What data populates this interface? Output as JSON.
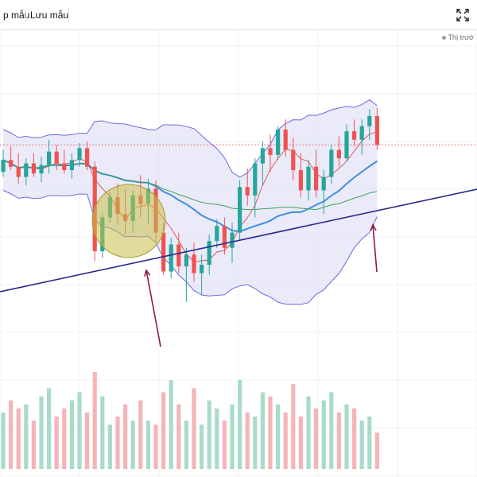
{
  "toolbar": {
    "left_label": "p mẫu",
    "save_label": "Lưu mẫu",
    "fullscreen_icon": "fullscreen-icon"
  },
  "legend": {
    "market_label": "Thị trườ"
  },
  "colors": {
    "up": "#26a69a",
    "down": "#ef5350",
    "band_fill": "#dcdcf5",
    "band_line": "#6a6ae0",
    "ma_fast": "#e05a5a",
    "ma_mid": "#3f8fe0",
    "ma_slow": "#3aa35a",
    "trendline": "#2a2a8c",
    "arrow": "#8b1a4a",
    "circle": "#c8c04a",
    "price_line": "#ef5350"
  },
  "chart_data": {
    "type": "candlestick",
    "candles": [
      [
        0,
        225,
        238,
        222,
        232
      ],
      [
        1,
        232,
        240,
        226,
        228
      ],
      [
        2,
        228,
        236,
        218,
        222
      ],
      [
        3,
        222,
        233,
        217,
        230
      ],
      [
        4,
        230,
        236,
        222,
        224
      ],
      [
        5,
        224,
        234,
        219,
        229
      ],
      [
        6,
        229,
        244,
        224,
        237
      ],
      [
        7,
        237,
        241,
        226,
        230
      ],
      [
        8,
        230,
        238,
        224,
        226
      ],
      [
        9,
        226,
        236,
        221,
        232
      ],
      [
        10,
        232,
        242,
        228,
        239
      ],
      [
        11,
        239,
        243,
        226,
        228
      ],
      [
        12,
        228,
        231,
        172,
        178
      ],
      [
        13,
        178,
        201,
        174,
        198
      ],
      [
        14,
        198,
        213,
        195,
        210
      ],
      [
        15,
        210,
        218,
        194,
        200
      ],
      [
        16,
        200,
        215,
        188,
        196
      ],
      [
        17,
        196,
        214,
        189,
        211
      ],
      [
        18,
        211,
        223,
        198,
        206
      ],
      [
        19,
        206,
        221,
        194,
        215
      ],
      [
        20,
        215,
        220,
        184,
        189
      ],
      [
        21,
        189,
        195,
        164,
        166
      ],
      [
        22,
        166,
        186,
        162,
        182
      ],
      [
        23,
        182,
        189,
        165,
        169
      ],
      [
        24,
        169,
        180,
        148,
        176
      ],
      [
        25,
        176,
        183,
        160,
        165
      ],
      [
        26,
        165,
        176,
        152,
        170
      ],
      [
        27,
        170,
        188,
        164,
        184
      ],
      [
        28,
        184,
        197,
        180,
        193
      ],
      [
        29,
        193,
        198,
        176,
        180
      ],
      [
        30,
        180,
        195,
        171,
        189
      ],
      [
        31,
        189,
        220,
        184,
        216
      ],
      [
        32,
        216,
        227,
        205,
        211
      ],
      [
        33,
        211,
        233,
        198,
        230
      ],
      [
        34,
        230,
        243,
        217,
        239
      ],
      [
        35,
        239,
        247,
        225,
        235
      ],
      [
        36,
        235,
        252,
        232,
        250
      ],
      [
        37,
        250,
        256,
        234,
        238
      ],
      [
        38,
        238,
        245,
        220,
        226
      ],
      [
        39,
        226,
        236,
        210,
        214
      ],
      [
        40,
        214,
        232,
        208,
        228
      ],
      [
        41,
        228,
        238,
        210,
        214
      ],
      [
        42,
        214,
        226,
        200,
        222
      ],
      [
        43,
        222,
        241,
        218,
        238
      ],
      [
        44,
        238,
        246,
        228,
        233
      ],
      [
        45,
        233,
        253,
        231,
        249
      ],
      [
        46,
        249,
        256,
        240,
        244
      ],
      [
        47,
        244,
        256,
        235,
        252
      ],
      [
        48,
        252,
        262,
        244,
        258
      ],
      [
        49,
        258,
        263,
        238,
        241
      ]
    ],
    "volume": [
      14,
      17,
      15,
      16,
      12,
      18,
      20,
      13,
      15,
      17,
      19,
      14,
      24,
      18,
      11,
      13,
      16,
      12,
      17,
      12,
      11,
      19,
      22,
      16,
      12,
      20,
      11,
      17,
      15,
      12,
      16,
      22,
      14,
      13,
      19,
      18,
      16,
      14,
      21,
      13,
      18,
      15,
      17,
      19,
      14,
      16,
      15,
      12,
      13,
      9
    ]
  }
}
